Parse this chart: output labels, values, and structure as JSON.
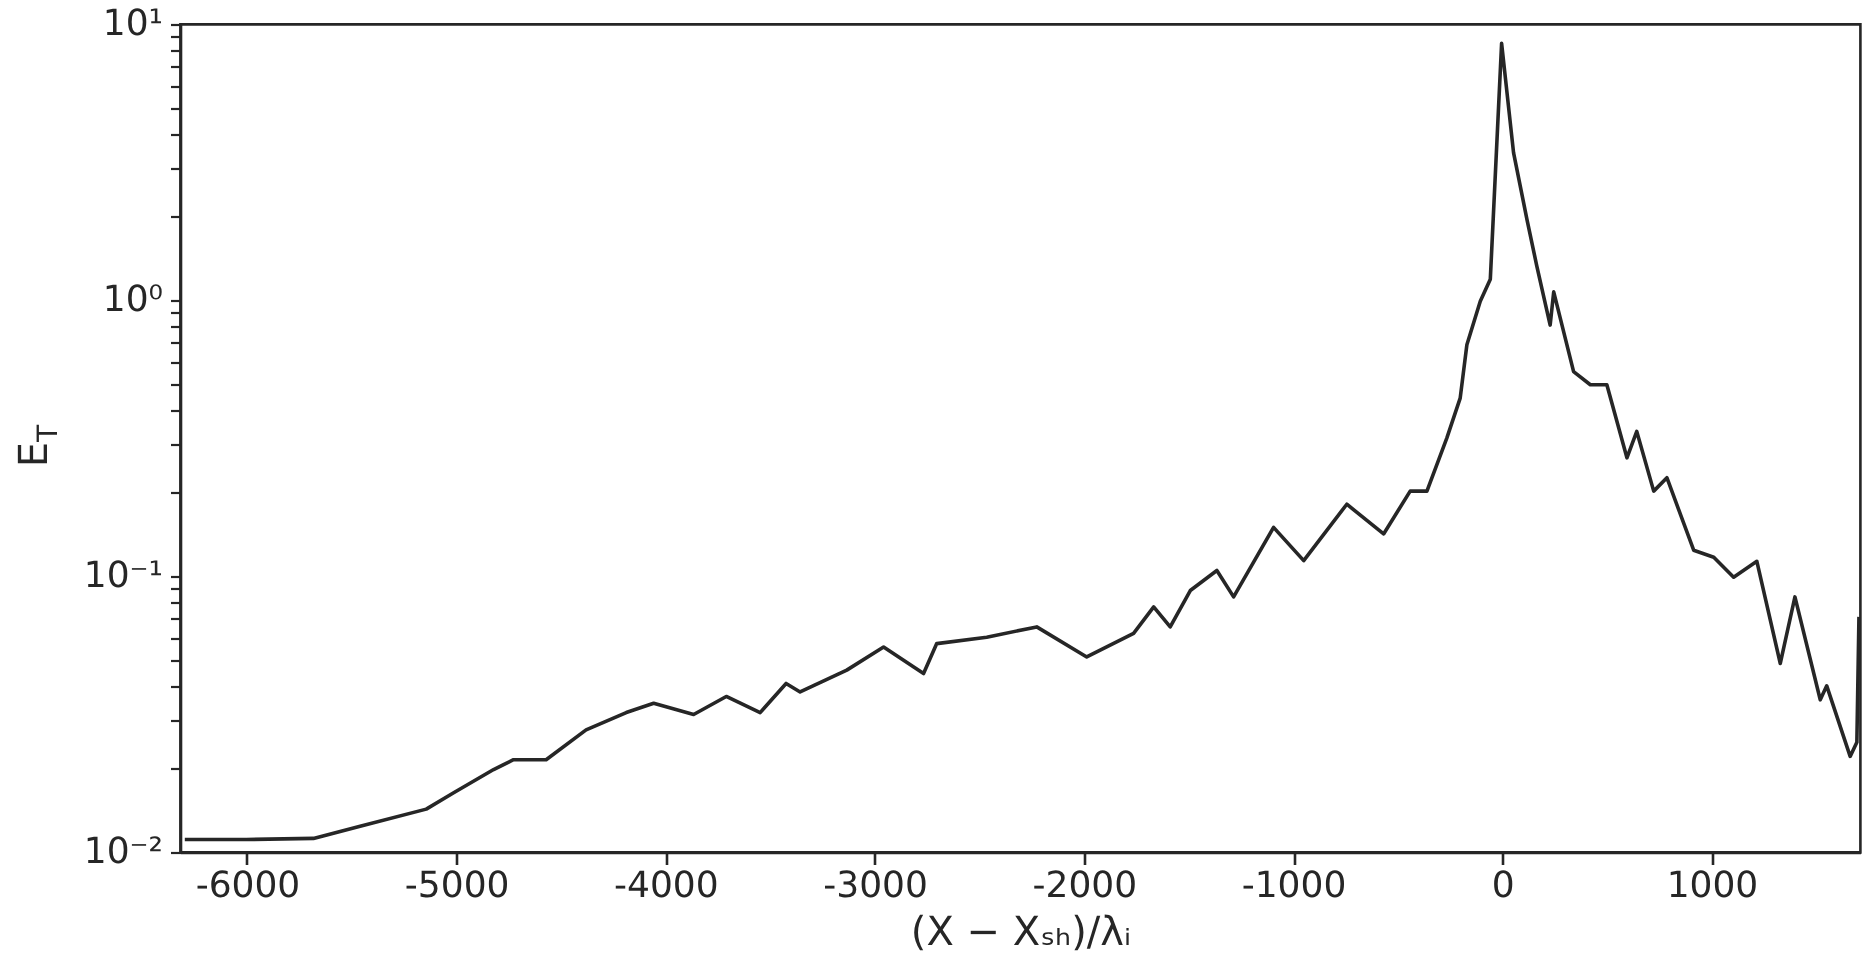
{
  "chart_data": {
    "type": "line",
    "xlabel": "(X − Xₛₕ)/λᵢ",
    "ylabel": "E$_{T}$",
    "log": true,
    "grid": false,
    "marker": "none",
    "line_style": "solid",
    "xlim": [
      -6320,
      1710
    ],
    "xticks": [
      -6000,
      -5000,
      -4000,
      -3000,
      -2000,
      -1000,
      0,
      1000
    ],
    "ylim": [
      0.01,
      10
    ],
    "yticks": [
      {
        "value": 0.01,
        "label": "10⁻²"
      },
      {
        "value": 0.02,
        "label": null
      },
      {
        "value": 0.03,
        "label": null
      },
      {
        "value": 0.04,
        "label": null
      },
      {
        "value": 0.05,
        "label": null
      },
      {
        "value": 0.06,
        "label": null
      },
      {
        "value": 0.07,
        "label": null
      },
      {
        "value": 0.08,
        "label": null
      },
      {
        "value": 0.09,
        "label": null
      },
      {
        "value": 0.1,
        "label": "10⁻¹"
      },
      {
        "value": 0.2,
        "label": null
      },
      {
        "value": 0.3,
        "label": null
      },
      {
        "value": 0.4,
        "label": null
      },
      {
        "value": 0.5,
        "label": null
      },
      {
        "value": 0.6,
        "label": null
      },
      {
        "value": 0.7,
        "label": null
      },
      {
        "value": 0.8,
        "label": null
      },
      {
        "value": 0.9,
        "label": null
      },
      {
        "value": 1,
        "label": "10⁰"
      },
      {
        "value": 2,
        "label": null
      },
      {
        "value": 3,
        "label": null
      },
      {
        "value": 4,
        "label": null
      },
      {
        "value": 5,
        "label": null
      },
      {
        "value": 6,
        "label": null
      },
      {
        "value": 7,
        "label": null
      },
      {
        "value": 8,
        "label": null
      },
      {
        "value": 9,
        "label": null
      },
      {
        "value": 10,
        "label": "10¹"
      }
    ],
    "series": [
      {
        "color": "#262626",
        "x": [
          -6297,
          -6004,
          -5682,
          -5459,
          -5143,
          -5012,
          -4821,
          -4726,
          -4570,
          -4379,
          -4187,
          -4056,
          -3865,
          -3709,
          -3547,
          -3423,
          -3356,
          -3133,
          -2957,
          -2766,
          -2703,
          -2464,
          -2225,
          -1986,
          -1762,
          -1666,
          -1587,
          -1491,
          -1364,
          -1284,
          -1093,
          -949,
          -743,
          -567,
          -440,
          -360,
          -265,
          -201,
          -169,
          -105,
          -57,
          -3,
          54,
          118,
          165,
          229,
          246,
          341,
          421,
          500,
          596,
          643,
          724,
          787,
          915,
          1011,
          1106,
          1217,
          1329,
          1399,
          1520,
          1551,
          1663,
          1695,
          1705
        ],
        "values": [
          0.0111,
          0.0111,
          0.0112,
          0.0124,
          0.0143,
          0.0164,
          0.0199,
          0.0216,
          0.0216,
          0.0277,
          0.032,
          0.0346,
          0.0315,
          0.0366,
          0.032,
          0.0408,
          0.038,
          0.0456,
          0.0553,
          0.0443,
          0.0569,
          0.06,
          0.0654,
          0.0509,
          0.062,
          0.0773,
          0.0654,
          0.0886,
          0.1047,
          0.084,
          0.15,
          0.1137,
          0.182,
          0.142,
          0.203,
          0.203,
          0.316,
          0.441,
          0.688,
          0.99,
          1.19,
          8.51,
          3.42,
          1.96,
          1.33,
          0.811,
          1.07,
          0.55,
          0.493,
          0.493,
          0.268,
          0.334,
          0.203,
          0.227,
          0.124,
          0.117,
          0.099,
          0.113,
          0.0482,
          0.084,
          0.0356,
          0.04,
          0.0222,
          0.025,
          0.0711
        ]
      }
    ]
  }
}
